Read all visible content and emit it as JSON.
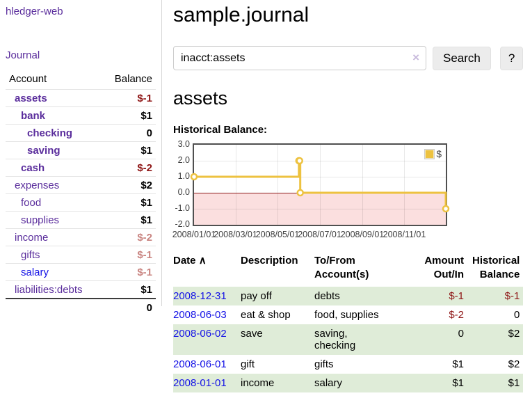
{
  "app": {
    "title": "hledger-web"
  },
  "sidebar": {
    "journal_link": "Journal",
    "accounts": {
      "col_account": "Account",
      "col_balance": "Balance",
      "rows": [
        {
          "label": "assets",
          "balance": "$-1"
        },
        {
          "label": "bank",
          "balance": "$1"
        },
        {
          "label": "checking",
          "balance": "0"
        },
        {
          "label": "saving",
          "balance": "$1"
        },
        {
          "label": "cash",
          "balance": "$-2"
        },
        {
          "label": "expenses",
          "balance": "$2"
        },
        {
          "label": "food",
          "balance": "$1"
        },
        {
          "label": "supplies",
          "balance": "$1"
        },
        {
          "label": "income",
          "balance": "$-2"
        },
        {
          "label": "gifts",
          "balance": "$-1"
        },
        {
          "label": "salary",
          "balance": "$-1"
        },
        {
          "label": "liabilities:debts",
          "balance": "$1"
        }
      ],
      "total": "0"
    }
  },
  "main": {
    "title": "sample.journal",
    "search": {
      "value": "inacct:assets",
      "clear_icon": "×",
      "button_label": "Search",
      "help_label": "?"
    },
    "section_title": "assets",
    "chart_title": "Historical Balance:"
  },
  "chart_data": {
    "type": "line",
    "step": true,
    "title": "Historical Balance",
    "legend": [
      {
        "name": "$",
        "color": "#edc240"
      }
    ],
    "xlim": [
      0,
      365
    ],
    "ylim": [
      -2,
      3
    ],
    "series": [
      {
        "name": "$",
        "color": "#edc240",
        "points": [
          {
            "date": "2008-01-01",
            "day": 0,
            "value": 1
          },
          {
            "date": "2008-06-01",
            "day": 152,
            "value": 2
          },
          {
            "date": "2008-06-02",
            "day": 153,
            "value": 2
          },
          {
            "date": "2008-06-03",
            "day": 154,
            "value": 0
          },
          {
            "date": "2008-12-31",
            "day": 365,
            "value": -1
          }
        ]
      }
    ],
    "x_ticks": [
      {
        "day": 0,
        "label": "2008/01/01"
      },
      {
        "day": 60,
        "label": "2008/03/01"
      },
      {
        "day": 121,
        "label": "2008/05/01"
      },
      {
        "day": 182,
        "label": "2008/07/01"
      },
      {
        "day": 244,
        "label": "2008/09/01"
      },
      {
        "day": 305,
        "label": "2008/11/01"
      }
    ],
    "y_ticks": [
      {
        "value": 3,
        "label": "3.0"
      },
      {
        "value": 2,
        "label": "2.0"
      },
      {
        "value": 1,
        "label": "1.0"
      },
      {
        "value": 0,
        "label": "0.0"
      },
      {
        "value": -1,
        "label": "-1.0"
      },
      {
        "value": -2,
        "label": "-2.0"
      }
    ],
    "negative_region_color": "#fbdfdf",
    "zero_line_color": "#8f1a1a",
    "grid": true,
    "legend_position": "top-right"
  },
  "register": {
    "headers": {
      "date": "Date",
      "date_sort_icon": "∧",
      "description": "Description",
      "accounts_line1": "To/From",
      "accounts_line2": "Account(s)",
      "amount_line1": "Amount",
      "amount_line2": "Out/In",
      "balance_line1": "Historical",
      "balance_line2": "Balance"
    },
    "rows": [
      {
        "date": "2008-12-31",
        "description": "pay off",
        "accounts": "debts",
        "amount": "$-1",
        "balance": "$-1"
      },
      {
        "date": "2008-06-03",
        "description": "eat & shop",
        "accounts": "food, supplies",
        "amount": "$-2",
        "balance": "0"
      },
      {
        "date": "2008-06-02",
        "description": "save",
        "accounts": "saving, checking",
        "amount": "0",
        "balance": "$2"
      },
      {
        "date": "2008-06-01",
        "description": "gift",
        "accounts": "gifts",
        "amount": "$1",
        "balance": "$2"
      },
      {
        "date": "2008-01-01",
        "description": "income",
        "accounts": "salary",
        "amount": "$1",
        "balance": "$1"
      }
    ]
  },
  "colors": {
    "link_purple": "#5a2d9c",
    "link_blue": "#1412e6",
    "negative_strong": "#8e1515",
    "negative_faded": "#c98480",
    "row_green": "#dfecd8",
    "series_yellow": "#edc240"
  }
}
